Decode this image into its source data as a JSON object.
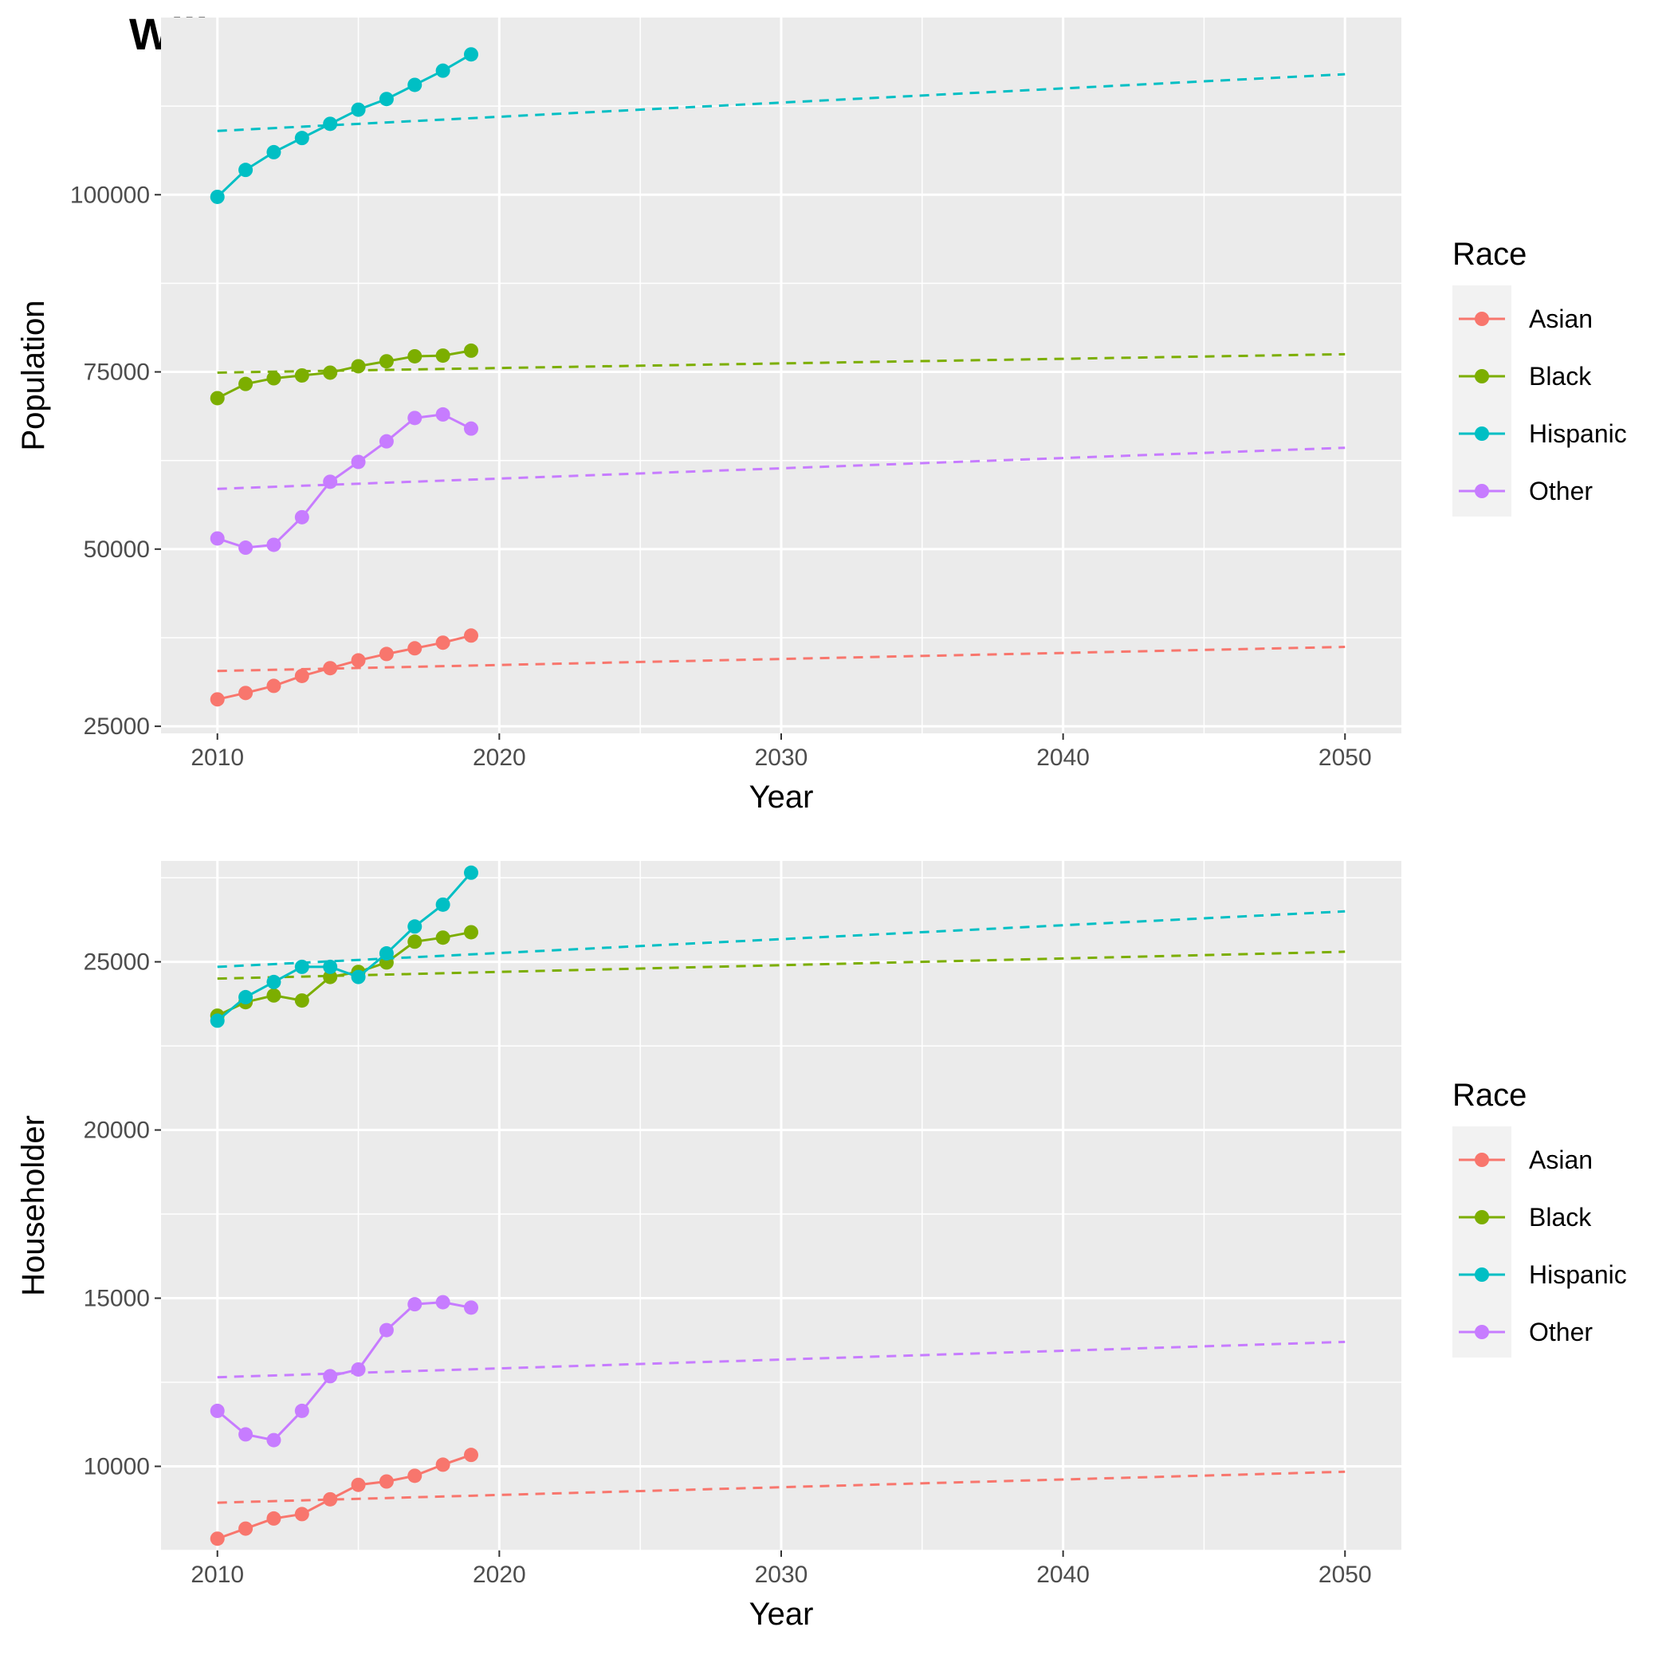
{
  "title": "Will County",
  "legend_title": "Race",
  "colors": {
    "Asian": "#F8766D",
    "Black": "#7CAE00",
    "Hispanic": "#00BFC4",
    "Other": "#C77CFF",
    "panel_bg": "#EBEBEB",
    "grid": "#FFFFFF"
  },
  "chart_data": [
    {
      "type": "line",
      "xlabel": "Year",
      "ylabel": "Population",
      "xlim": [
        2008,
        2052
      ],
      "ylim": [
        24000,
        125000
      ],
      "x_ticks": [
        2010,
        2020,
        2030,
        2040,
        2050
      ],
      "x_tick_labels": [
        "2010",
        "2020",
        "2030",
        "2040",
        "2050"
      ],
      "y_ticks": [
        25000,
        50000,
        75000,
        100000
      ],
      "y_tick_labels": [
        "25000",
        "50000",
        "75000",
        "100000"
      ],
      "grid": true,
      "legend_position": "right",
      "observed_x": [
        2010,
        2011,
        2012,
        2013,
        2014,
        2015,
        2016,
        2017,
        2018,
        2019
      ],
      "series": [
        {
          "name": "Asian",
          "values": [
            28800,
            29700,
            30700,
            32100,
            33200,
            34300,
            35200,
            36000,
            36800,
            37800
          ],
          "trend": {
            "x": [
              2010,
              2050
            ],
            "y": [
              32800,
              36200
            ]
          }
        },
        {
          "name": "Black",
          "values": [
            71300,
            73300,
            74100,
            74500,
            74900,
            75800,
            76500,
            77200,
            77300,
            78000
          ],
          "trend": {
            "x": [
              2010,
              2050
            ],
            "y": [
              74900,
              77500
            ]
          }
        },
        {
          "name": "Hispanic",
          "values": [
            99700,
            103500,
            106000,
            108000,
            110000,
            112000,
            113500,
            115500,
            117500,
            119800
          ],
          "trend": {
            "x": [
              2010,
              2050
            ],
            "y": [
              109000,
              117000
            ]
          }
        },
        {
          "name": "Other",
          "values": [
            51500,
            50200,
            50600,
            54500,
            59500,
            62300,
            65200,
            68500,
            69000,
            67000
          ],
          "trend": {
            "x": [
              2010,
              2050
            ],
            "y": [
              58500,
              64300
            ]
          }
        }
      ]
    },
    {
      "type": "line",
      "xlabel": "Year",
      "ylabel": "Householder",
      "xlim": [
        2008,
        2052
      ],
      "ylim": [
        7500,
        28000
      ],
      "x_ticks": [
        2010,
        2020,
        2030,
        2040,
        2050
      ],
      "x_tick_labels": [
        "2010",
        "2020",
        "2030",
        "2040",
        "2050"
      ],
      "y_ticks": [
        10000,
        15000,
        20000,
        25000
      ],
      "y_tick_labels": [
        "10000",
        "15000",
        "20000",
        "25000"
      ],
      "grid": true,
      "legend_position": "right",
      "observed_x": [
        2010,
        2011,
        2012,
        2013,
        2014,
        2015,
        2016,
        2017,
        2018,
        2019
      ],
      "series": [
        {
          "name": "Asian",
          "values": [
            7850,
            8150,
            8450,
            8580,
            9020,
            9450,
            9550,
            9720,
            10050,
            10340
          ],
          "trend": {
            "x": [
              2010,
              2050
            ],
            "y": [
              8920,
              9840
            ]
          }
        },
        {
          "name": "Black",
          "values": [
            23400,
            23800,
            24000,
            23850,
            24550,
            24700,
            24980,
            25600,
            25720,
            25880
          ],
          "trend": {
            "x": [
              2010,
              2050
            ],
            "y": [
              24500,
              25300
            ]
          }
        },
        {
          "name": "Hispanic",
          "values": [
            23250,
            23950,
            24400,
            24850,
            24850,
            24550,
            25250,
            26050,
            26700,
            27650
          ],
          "trend": {
            "x": [
              2010,
              2050
            ],
            "y": [
              24850,
              26500
            ]
          }
        },
        {
          "name": "Other",
          "values": [
            11650,
            10950,
            10780,
            11650,
            12680,
            12880,
            14050,
            14820,
            14880,
            14720
          ],
          "trend": {
            "x": [
              2010,
              2050
            ],
            "y": [
              12650,
              13700
            ]
          }
        }
      ]
    }
  ]
}
